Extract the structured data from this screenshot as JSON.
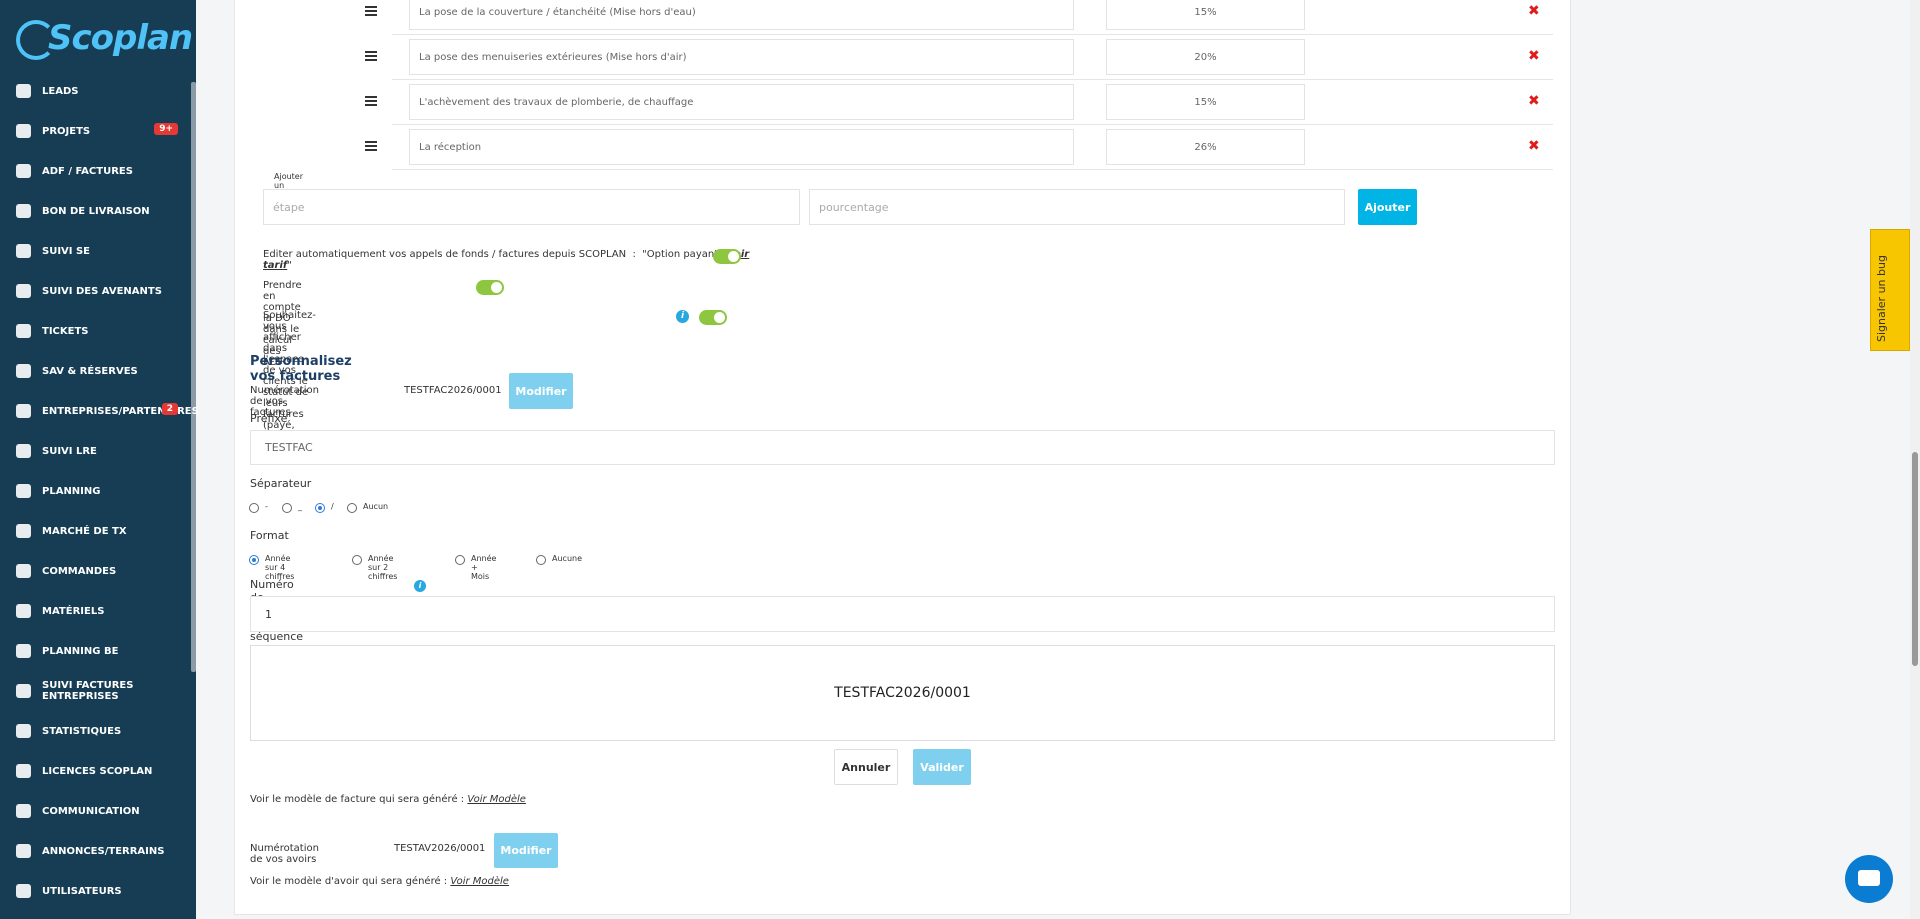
{
  "sidebar": {
    "logo": "Scoplan",
    "items": [
      {
        "label": "LEADS"
      },
      {
        "label": "PROJETS",
        "badge": "9+"
      },
      {
        "label": "ADF / FACTURES"
      },
      {
        "label": "BON DE LIVRAISON"
      },
      {
        "label": "SUIVI SE"
      },
      {
        "label": "SUIVI DES AVENANTS"
      },
      {
        "label": "TICKETS"
      },
      {
        "label": "SAV & RÉSERVES"
      },
      {
        "label": "ENTREPRISES/PARTENAIRES",
        "badge": "2"
      },
      {
        "label": "SUIVI LRE"
      },
      {
        "label": "PLANNING"
      },
      {
        "label": "MARCHÉ DE TX"
      },
      {
        "label": "COMMANDES"
      },
      {
        "label": "MATÉRIELS"
      },
      {
        "label": "PLANNING BE"
      },
      {
        "label": "SUIVI FACTURES ENTREPRISES"
      },
      {
        "label": "STATISTIQUES"
      },
      {
        "label": "LICENCES SCOPLAN"
      },
      {
        "label": "COMMUNICATION"
      },
      {
        "label": "ANNONCES/TERRAINS"
      },
      {
        "label": "UTILISATEURS"
      }
    ]
  },
  "milestones": [
    {
      "label": "La pose de la couverture / étanchéité (Mise hors d'eau)",
      "percent": "15%"
    },
    {
      "label": "La pose des menuiseries extérieures (Mise hors d'air)",
      "percent": "20%"
    },
    {
      "label": "L'achèvement des travaux de plomberie, de chauffage",
      "percent": "15%"
    },
    {
      "label": "La réception",
      "percent": "26%"
    }
  ],
  "add_milestone": {
    "label": "Ajouter un jalon",
    "step_placeholder": "étape",
    "percent_placeholder": "pourcentage",
    "button": "Ajouter"
  },
  "options": {
    "auto_edit": {
      "text": "Editer automatiquement vos appels de fonds / factures depuis SCOPLAN  :  \"Option payante ",
      "link": "voir tarif",
      "end": "\""
    },
    "do_in_adf": "Prendre en compte la DO dans le calcul des ADF",
    "show_status": "Souhaitez-vous afficher dans l'espace de vos clients le statut de leurs factures (payé, non payé)"
  },
  "invoices": {
    "title": "Personnalisez vos factures",
    "numbering_label": "Numérotation de vos factures",
    "numbering_value": "TESTFAC2026/0001",
    "modify": "Modifier",
    "prefix_label": "Préfixe",
    "prefix_value": "TESTFAC",
    "separator_label": "Séparateur",
    "separators": [
      "-",
      "_",
      "/",
      "Aucun"
    ],
    "format_label": "Format",
    "formats": [
      "Année sur 4 chiffres",
      "Année sur 2 chiffres",
      "Année + Mois",
      "Aucune"
    ],
    "start_label": "Numéro de départ de la séquence",
    "start_value": "1",
    "preview": "TESTFAC2026/0001",
    "cancel": "Annuler",
    "validate": "Valider",
    "model_text": "Voir le modèle de facture qui sera généré : ",
    "model_link": "Voir Modèle"
  },
  "credits": {
    "numbering_label": "Numérotation de vos avoirs",
    "numbering_value": "TESTAV2026/0001",
    "modify": "Modifier",
    "model_text": "Voir le modèle d'avoir qui sera généré : ",
    "model_link": "Voir Modèle"
  },
  "bug_tab": "Signaler un bug"
}
